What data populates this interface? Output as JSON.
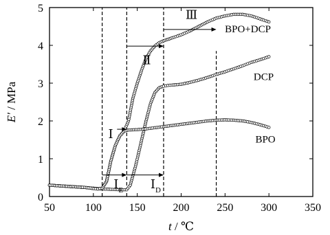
{
  "chart_data": {
    "type": "line",
    "xlabel_var": "t",
    "xlabel_unit": " / ℃",
    "ylabel_var": "E'",
    "ylabel_unit": " / MPa",
    "xlim": [
      50,
      350
    ],
    "ylim": [
      0,
      5
    ],
    "xticks": [
      50,
      100,
      150,
      200,
      250,
      300,
      350
    ],
    "yticks": [
      0,
      1,
      2,
      3,
      4,
      5
    ],
    "grid": false,
    "series": [
      {
        "name": "BPO+DCP",
        "points": [
          [
            50,
            0.3
          ],
          [
            70,
            0.27
          ],
          [
            90,
            0.24
          ],
          [
            105,
            0.2
          ],
          [
            110,
            0.22
          ],
          [
            115,
            0.4
          ],
          [
            120,
            0.95
          ],
          [
            125,
            1.35
          ],
          [
            130,
            1.6
          ],
          [
            135,
            1.73
          ],
          [
            140,
            2.0
          ],
          [
            145,
            2.6
          ],
          [
            150,
            3.0
          ],
          [
            155,
            3.35
          ],
          [
            160,
            3.65
          ],
          [
            165,
            3.85
          ],
          [
            170,
            3.98
          ],
          [
            175,
            4.07
          ],
          [
            180,
            4.12
          ],
          [
            185,
            4.16
          ],
          [
            190,
            4.2
          ],
          [
            200,
            4.28
          ],
          [
            210,
            4.38
          ],
          [
            220,
            4.5
          ],
          [
            230,
            4.62
          ],
          [
            240,
            4.72
          ],
          [
            250,
            4.78
          ],
          [
            260,
            4.82
          ],
          [
            270,
            4.82
          ],
          [
            280,
            4.78
          ],
          [
            290,
            4.7
          ],
          [
            300,
            4.62
          ]
        ]
      },
      {
        "name": "DCP",
        "points": [
          [
            50,
            0.3
          ],
          [
            70,
            0.27
          ],
          [
            90,
            0.24
          ],
          [
            110,
            0.2
          ],
          [
            130,
            0.18
          ],
          [
            138,
            0.18
          ],
          [
            142,
            0.3
          ],
          [
            148,
            0.8
          ],
          [
            155,
            1.5
          ],
          [
            160,
            2.0
          ],
          [
            165,
            2.45
          ],
          [
            170,
            2.75
          ],
          [
            175,
            2.88
          ],
          [
            180,
            2.92
          ],
          [
            185,
            2.94
          ],
          [
            190,
            2.95
          ],
          [
            200,
            2.97
          ],
          [
            210,
            3.02
          ],
          [
            220,
            3.08
          ],
          [
            230,
            3.15
          ],
          [
            240,
            3.23
          ],
          [
            250,
            3.3
          ],
          [
            260,
            3.38
          ],
          [
            270,
            3.46
          ],
          [
            280,
            3.55
          ],
          [
            290,
            3.62
          ],
          [
            300,
            3.7
          ]
        ]
      },
      {
        "name": "BPO",
        "points": [
          [
            50,
            0.3
          ],
          [
            70,
            0.27
          ],
          [
            90,
            0.24
          ],
          [
            105,
            0.2
          ],
          [
            110,
            0.22
          ],
          [
            115,
            0.4
          ],
          [
            120,
            0.95
          ],
          [
            125,
            1.35
          ],
          [
            130,
            1.6
          ],
          [
            135,
            1.73
          ],
          [
            140,
            1.76
          ],
          [
            150,
            1.77
          ],
          [
            160,
            1.79
          ],
          [
            170,
            1.82
          ],
          [
            180,
            1.85
          ],
          [
            190,
            1.88
          ],
          [
            200,
            1.91
          ],
          [
            210,
            1.94
          ],
          [
            220,
            1.97
          ],
          [
            230,
            2.0
          ],
          [
            240,
            2.02
          ],
          [
            250,
            2.03
          ],
          [
            260,
            2.02
          ],
          [
            270,
            2.0
          ],
          [
            280,
            1.96
          ],
          [
            290,
            1.9
          ],
          [
            300,
            1.83
          ]
        ]
      }
    ],
    "series_label_positions": [
      {
        "name": "BPO+DCP",
        "x": 276,
        "y": 4.35
      },
      {
        "name": "DCP",
        "x": 294,
        "y": 3.08
      },
      {
        "name": "BPO",
        "x": 296,
        "y": 1.43
      }
    ],
    "vlines": [
      {
        "x": 110,
        "y_top": 5.0
      },
      {
        "x": 138,
        "y_top": 5.0
      },
      {
        "x": 180,
        "y_top": 5.0
      },
      {
        "x": 240,
        "y_top": 3.85
      }
    ],
    "annotations": [
      {
        "id": "I",
        "text": "Ⅰ",
        "sub": "",
        "x": 117,
        "y": 1.55,
        "arrow": {
          "from": 127,
          "to": 138,
          "y": 1.78
        }
      },
      {
        "id": "II",
        "text": "Ⅱ",
        "sub": "",
        "x": 156,
        "y": 3.5,
        "arrow": {
          "from": 138,
          "to": 180,
          "y": 3.98
        }
      },
      {
        "id": "III",
        "text": "Ⅲ",
        "sub": "",
        "x": 205,
        "y": 4.7,
        "arrow": {
          "from": 180,
          "to": 240,
          "y": 4.42
        }
      },
      {
        "id": "IE",
        "text": "Ⅰ",
        "sub": "E",
        "x": 123,
        "y": 0.22,
        "arrow": {
          "from": 110,
          "to": 138,
          "y": 0.57
        }
      },
      {
        "id": "ID",
        "text": "Ⅰ",
        "sub": "D",
        "x": 165,
        "y": 0.22,
        "arrow": {
          "from": 138,
          "to": 180,
          "y": 0.57
        }
      }
    ]
  }
}
